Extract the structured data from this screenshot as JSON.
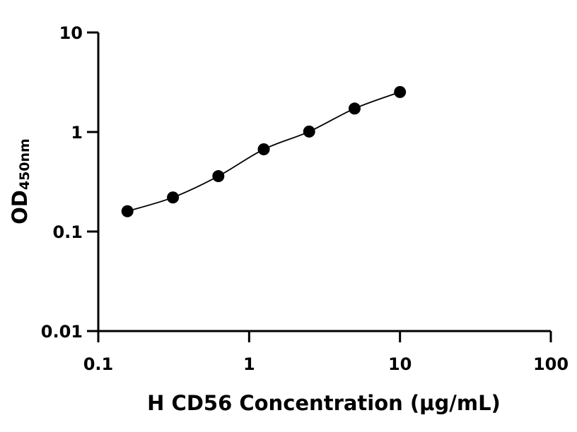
{
  "chart_data": {
    "type": "scatter",
    "xscale": "log",
    "yscale": "log",
    "xlim": [
      0.1,
      100
    ],
    "ylim": [
      0.01,
      10
    ],
    "x_ticks": [
      {
        "value": 0.1,
        "label": "0.1"
      },
      {
        "value": 1,
        "label": "1"
      },
      {
        "value": 10,
        "label": "10"
      },
      {
        "value": 100,
        "label": "100"
      }
    ],
    "y_ticks": [
      {
        "value": 0.01,
        "label": "0.01"
      },
      {
        "value": 0.1,
        "label": "0.1"
      },
      {
        "value": 1,
        "label": "1"
      },
      {
        "value": 10,
        "label": "10"
      }
    ],
    "xlabel": "H CD56 Concentration (μg/mL)",
    "ylabel": {
      "main": "OD",
      "sub": "450nm"
    },
    "grid": false,
    "legend": "none",
    "fit_curve": true,
    "series": [
      {
        "x": [
          0.156,
          0.3125,
          0.625,
          1.25,
          2.5,
          5,
          10
        ],
        "y": [
          0.16,
          0.22,
          0.36,
          0.67,
          1.01,
          1.72,
          2.52
        ]
      }
    ]
  }
}
